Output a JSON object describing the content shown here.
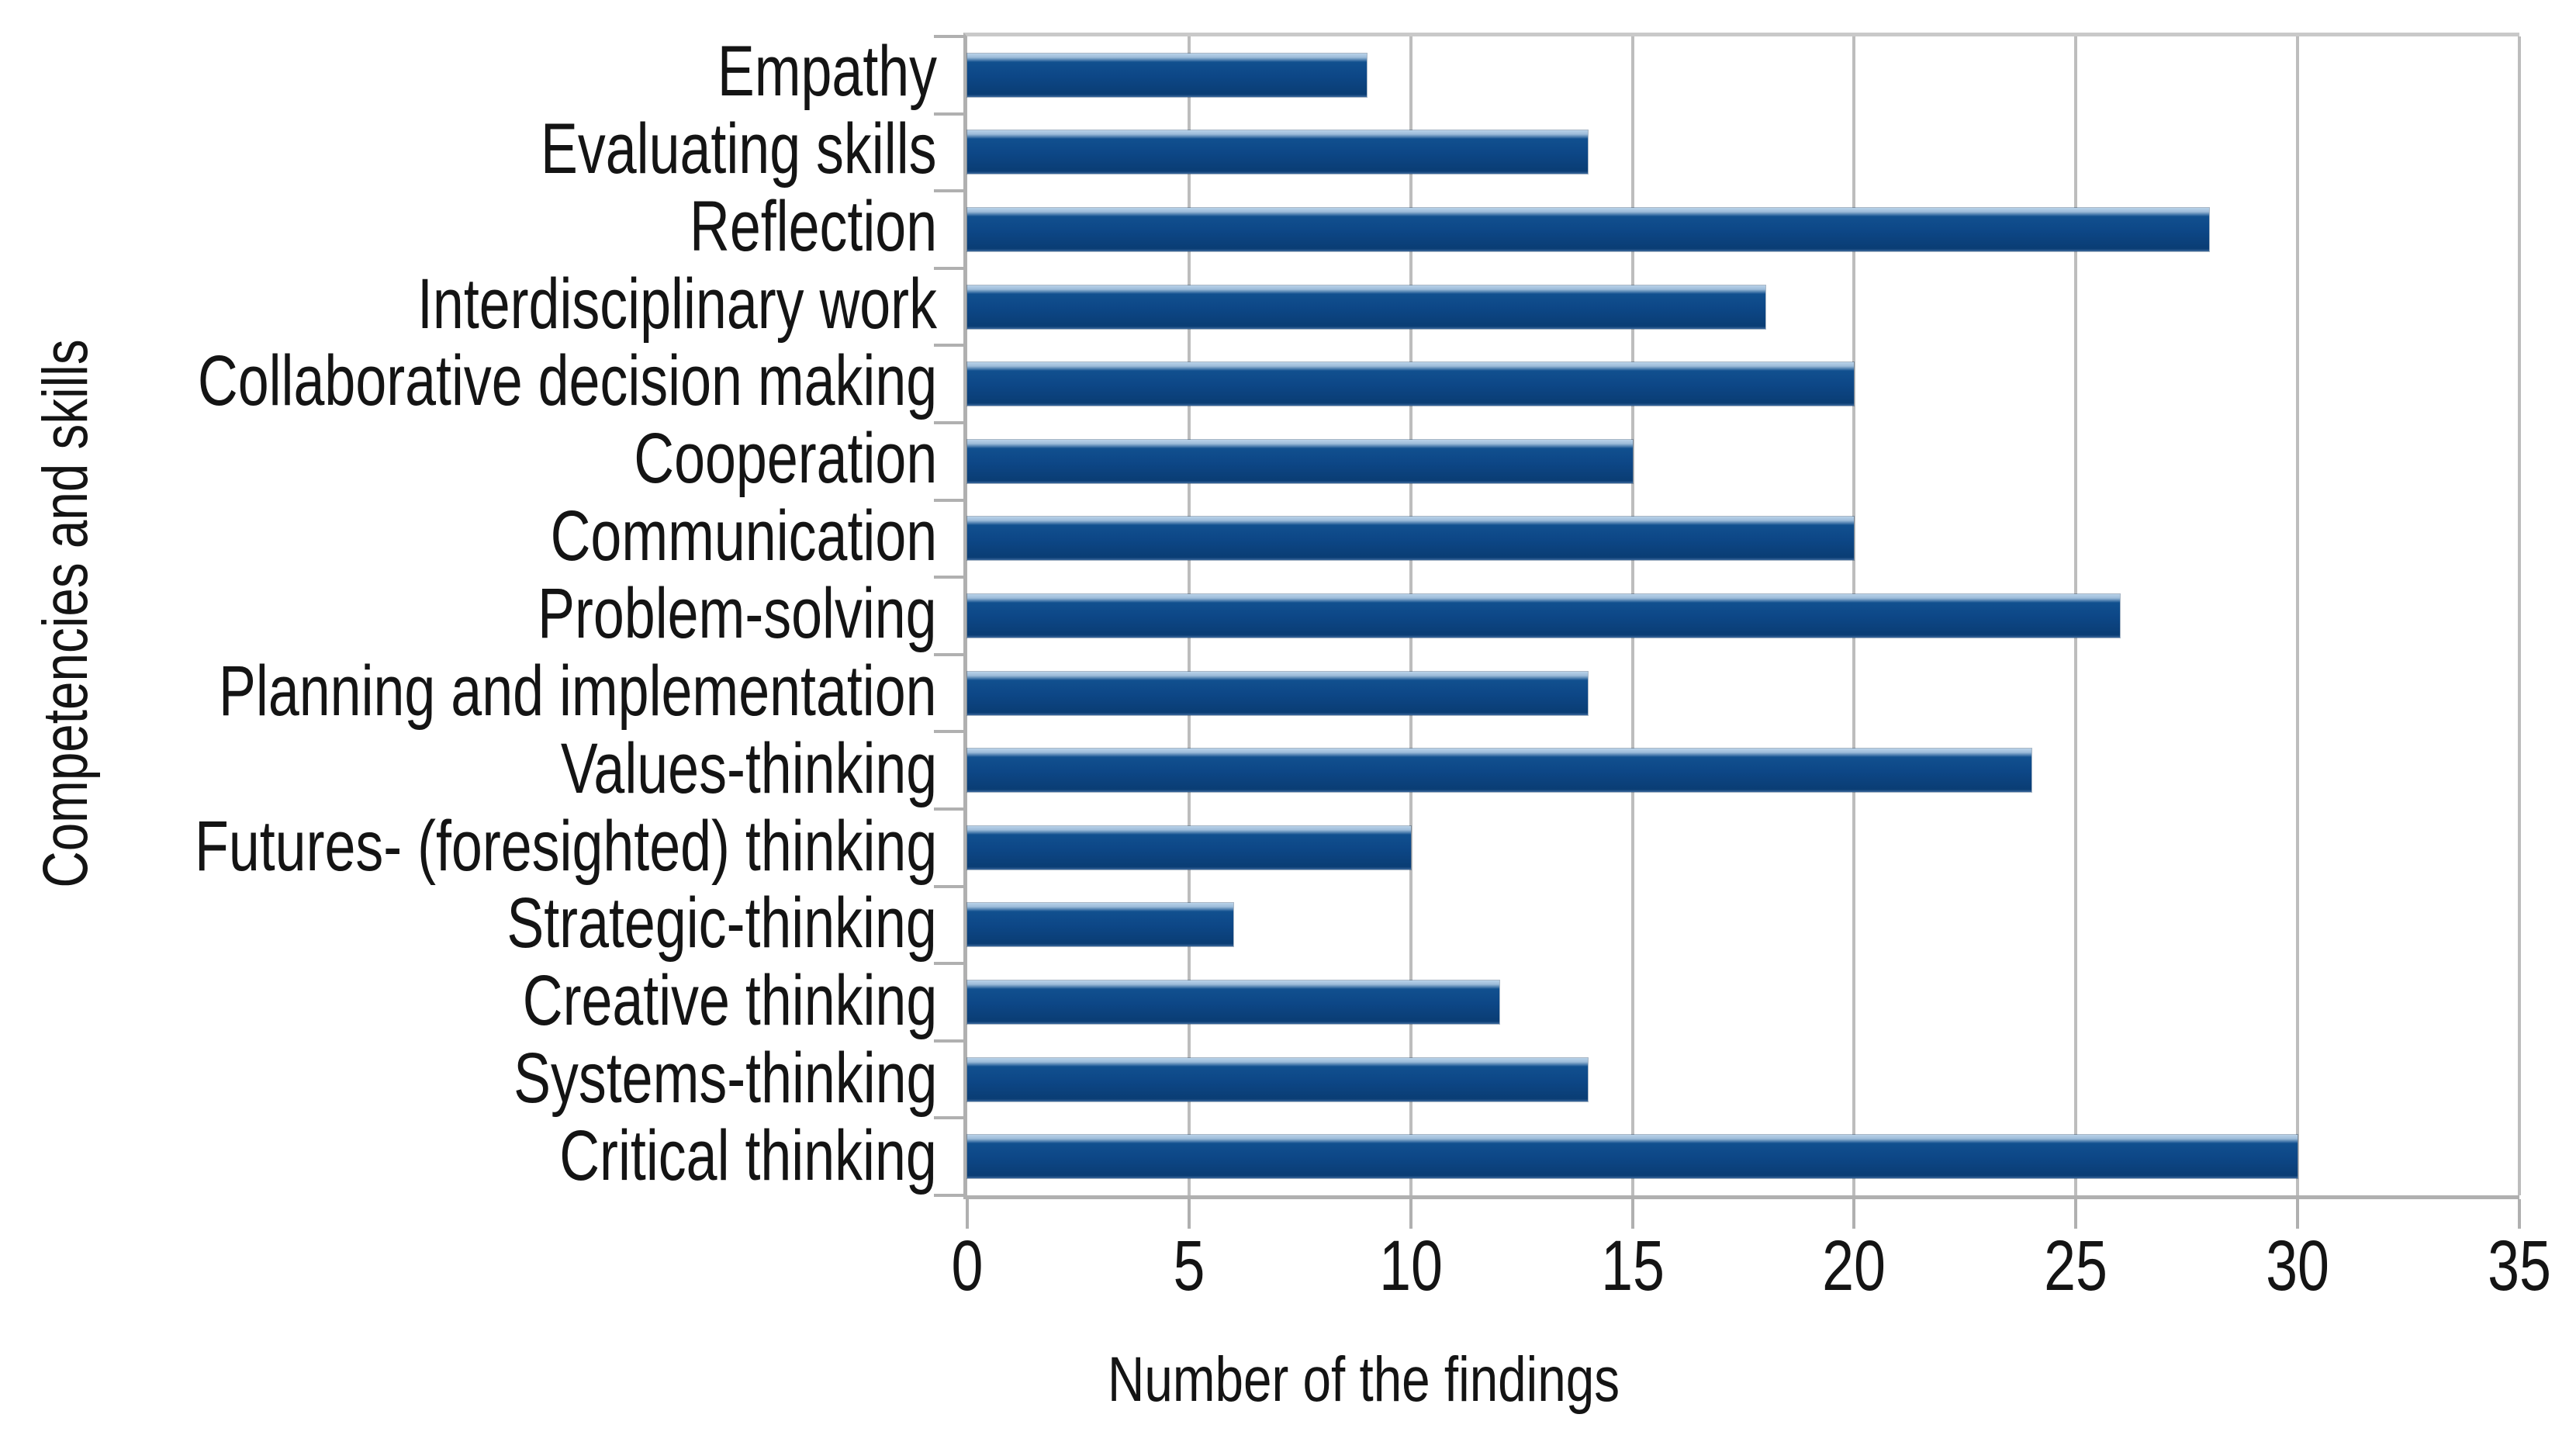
{
  "chart_data": {
    "type": "bar",
    "orientation": "horizontal",
    "title": "",
    "categories": [
      "Empathy",
      "Evaluating skills",
      "Reflection",
      "Interdisciplinary work",
      "Collaborative decision making",
      "Cooperation",
      "Communication",
      "Problem-solving",
      "Planning and implementation",
      "Values-thinking",
      "Futures- (foresighted) thinking",
      "Strategic-thinking",
      "Creative thinking",
      "Systems-thinking",
      "Critical thinking"
    ],
    "values": [
      9,
      14,
      28,
      18,
      20,
      15,
      20,
      26,
      14,
      24,
      10,
      6,
      12,
      14,
      30
    ],
    "xlabel": "Number of the findings",
    "ylabel": "Competencies and skills",
    "xlim": [
      0,
      35
    ],
    "xticks": [
      0,
      5,
      10,
      15,
      20,
      25,
      30,
      35
    ],
    "grid": "vertical",
    "legend": "none",
    "colors": {
      "bar": "#0d4787",
      "bar_highlight": "#b9d2e8",
      "grid": "#bdbdbd",
      "axis": "#b0b0b0",
      "text": "#141414",
      "background": "#ffffff"
    }
  }
}
